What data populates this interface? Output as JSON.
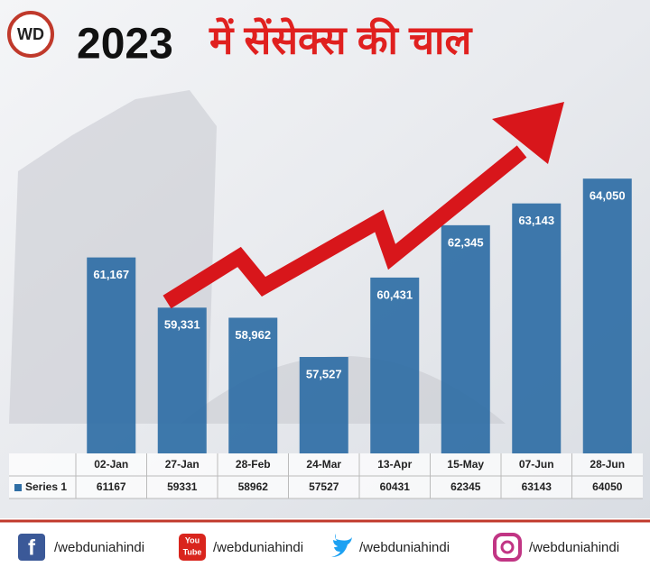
{
  "logo": "WD",
  "chart_data": {
    "type": "bar",
    "title_prefix": "2023",
    "title": "में सेंसेक्स की चाल",
    "categories": [
      "02-Jan",
      "27-Jan",
      "28-Feb",
      "24-Mar",
      "13-Apr",
      "15-May",
      "07-Jun",
      "28-Jun"
    ],
    "series": [
      {
        "name": "Series 1",
        "color": "#2f6ea5",
        "values": [
          61167,
          59331,
          58962,
          57527,
          60431,
          62345,
          63143,
          64050
        ],
        "value_labels": [
          "61,167",
          "59,331",
          "58,962",
          "57,527",
          "60,431",
          "62,345",
          "63,143",
          "64,050"
        ]
      }
    ],
    "ylim": [
      54000,
      66000
    ],
    "grid": false
  },
  "footer": {
    "links": [
      "/webduniahindi",
      "/webduniahindi",
      "/webduniahindi",
      "/webduniahindi"
    ],
    "youtube_icon": [
      "You",
      "Tube"
    ],
    "facebook_icon": "f"
  }
}
